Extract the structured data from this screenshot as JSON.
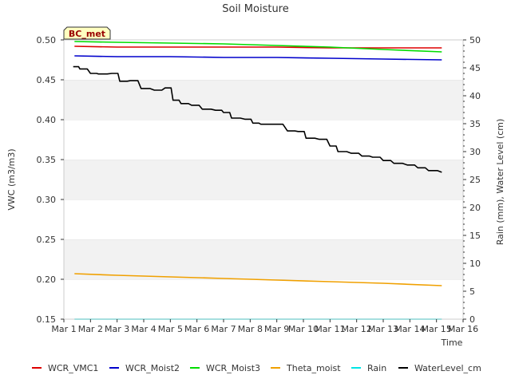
{
  "chart_data": {
    "type": "line",
    "title": "Soil Moisture",
    "badge": "BC_met",
    "xlabel": "Time",
    "ylabel_left": "VWC (m3/m3)",
    "ylabel_right": "Rain (mm), Water Level (cm)",
    "x_ticks": [
      "Mar 1",
      "Mar 2",
      "Mar 3",
      "Mar 4",
      "Mar 5",
      "Mar 6",
      "Mar 7",
      "Mar 8",
      "Mar 9",
      "Mar 10",
      "Mar 11",
      "Mar 12",
      "Mar 13",
      "Mar 14",
      "Mar 15",
      "Mar 16"
    ],
    "xlim": [
      1,
      16
    ],
    "ylim_left": [
      0.15,
      0.5
    ],
    "ylim_right": [
      0,
      50
    ],
    "y_ticks_left": [
      "0.15",
      "0.20",
      "0.25",
      "0.30",
      "0.35",
      "0.40",
      "0.45",
      "0.50"
    ],
    "y_ticks_right": [
      "0",
      "5",
      "10",
      "15",
      "20",
      "25",
      "30",
      "35",
      "40",
      "45",
      "50"
    ],
    "grid": "horizontal bands",
    "legend_position": "bottom",
    "series": [
      {
        "name": "WCR_VMC1",
        "color": "#dd0000",
        "axis": "left",
        "x": [
          1.4,
          3,
          5,
          7,
          9,
          11,
          13,
          15.2
        ],
        "y": [
          0.492,
          0.491,
          0.491,
          0.491,
          0.491,
          0.49,
          0.49,
          0.49
        ]
      },
      {
        "name": "WCR_Moist2",
        "color": "#0000cc",
        "axis": "left",
        "x": [
          1.4,
          3,
          5,
          7,
          9,
          11,
          13,
          15.2
        ],
        "y": [
          0.48,
          0.479,
          0.479,
          0.478,
          0.478,
          0.477,
          0.476,
          0.475
        ]
      },
      {
        "name": "WCR_Moist3",
        "color": "#00dd00",
        "axis": "left",
        "x": [
          1.4,
          3,
          5,
          7,
          9,
          11,
          13,
          15.2
        ],
        "y": [
          0.498,
          0.497,
          0.496,
          0.495,
          0.493,
          0.491,
          0.488,
          0.485
        ]
      },
      {
        "name": "Theta_moist",
        "color": "#f0a000",
        "axis": "left",
        "x": [
          1.4,
          3,
          5,
          7,
          9,
          11,
          13,
          15.2
        ],
        "y": [
          0.207,
          0.205,
          0.203,
          0.201,
          0.199,
          0.197,
          0.195,
          0.192
        ]
      },
      {
        "name": "Rain",
        "color": "#00e5e5",
        "axis": "right",
        "x": [
          1.4,
          15.2
        ],
        "y": [
          0,
          0
        ]
      },
      {
        "name": "WaterLevel_cm",
        "color": "#000000",
        "axis": "right",
        "x": [
          1.35,
          1.6,
          2.0,
          2.3,
          2.8,
          3.1,
          3.5,
          3.9,
          4.4,
          4.8,
          5.1,
          5.4,
          5.8,
          6.2,
          6.7,
          7.0,
          7.3,
          7.8,
          8.1,
          8.4,
          8.9,
          9.4,
          9.8,
          10.1,
          10.6,
          11.0,
          11.3,
          11.8,
          12.2,
          12.6,
          13.0,
          13.4,
          13.9,
          14.3,
          14.7,
          15.2
        ],
        "y": [
          45.2,
          44.8,
          44.0,
          43.9,
          44.0,
          42.6,
          42.7,
          41.3,
          41.0,
          41.4,
          39.2,
          38.6,
          38.3,
          37.6,
          37.4,
          37.0,
          36.0,
          35.8,
          35.1,
          34.9,
          34.9,
          33.7,
          33.6,
          32.4,
          32.2,
          31.0,
          30.0,
          29.7,
          29.2,
          29.0,
          28.4,
          27.9,
          27.6,
          27.1,
          26.6,
          26.3
        ]
      }
    ]
  }
}
